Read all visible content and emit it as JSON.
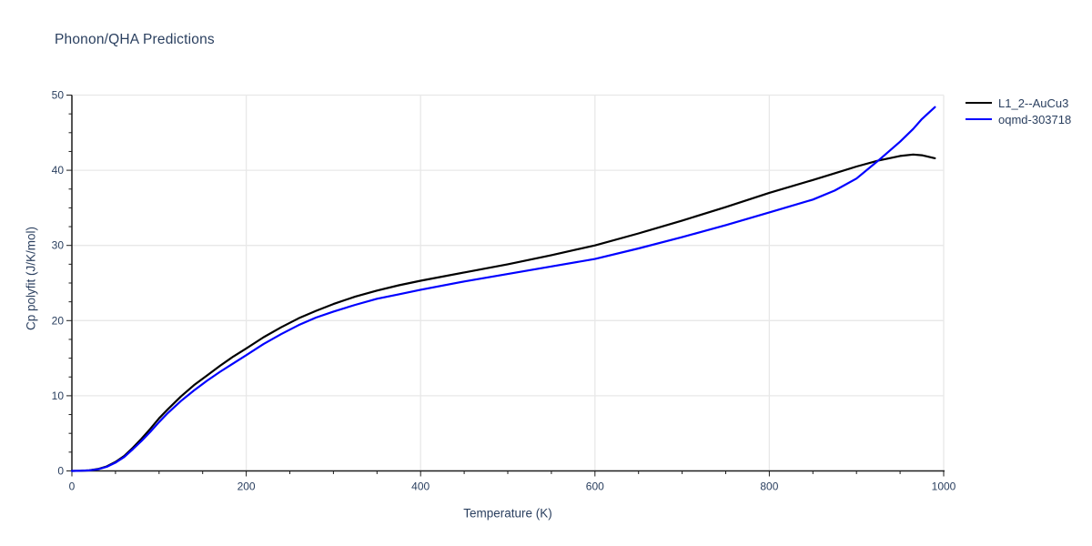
{
  "chart_data": {
    "type": "line",
    "title": "Phonon/QHA Predictions",
    "xlabel": "Temperature (K)",
    "ylabel": "Cp polyfit (J/K/mol)",
    "xlim": [
      0,
      1000
    ],
    "ylim": [
      0,
      50
    ],
    "x_ticks": [
      0,
      200,
      400,
      600,
      800,
      1000
    ],
    "y_ticks": [
      0,
      10,
      20,
      30,
      40,
      50
    ],
    "x_minor_step": 50,
    "y_minor_step": 2.5,
    "grid": true,
    "legend_position": "outside-top-right",
    "colors": {
      "text": "#2a3f5f",
      "grid": "#e8e8e8",
      "axis": "#1c1c1c",
      "background": "#ffffff"
    },
    "x": [
      0,
      10,
      20,
      30,
      40,
      50,
      60,
      70,
      80,
      90,
      100,
      110,
      125,
      140,
      155,
      170,
      185,
      200,
      220,
      240,
      260,
      280,
      300,
      325,
      350,
      375,
      400,
      450,
      500,
      550,
      600,
      650,
      700,
      750,
      800,
      850,
      875,
      900,
      925,
      950,
      965,
      975,
      990
    ],
    "series": [
      {
        "name": "L1_2--AuCu3",
        "color": "#000000",
        "values": [
          0,
          0.02,
          0.08,
          0.25,
          0.6,
          1.2,
          2.0,
          3.1,
          4.3,
          5.6,
          7.0,
          8.2,
          9.9,
          11.4,
          12.7,
          14.0,
          15.2,
          16.3,
          17.8,
          19.1,
          20.3,
          21.3,
          22.2,
          23.2,
          24.0,
          24.7,
          25.3,
          26.4,
          27.5,
          28.7,
          30.0,
          31.6,
          33.3,
          35.1,
          37.0,
          38.7,
          39.6,
          40.5,
          41.3,
          41.9,
          42.1,
          42.0,
          41.6
        ]
      },
      {
        "name": "oqmd-303718",
        "color": "#0000ff",
        "values": [
          0,
          0.02,
          0.07,
          0.22,
          0.55,
          1.1,
          1.85,
          2.9,
          4.0,
          5.2,
          6.5,
          7.7,
          9.3,
          10.7,
          12.0,
          13.2,
          14.3,
          15.4,
          16.9,
          18.2,
          19.4,
          20.4,
          21.2,
          22.1,
          22.9,
          23.5,
          24.1,
          25.2,
          26.2,
          27.2,
          28.2,
          29.6,
          31.1,
          32.7,
          34.4,
          36.1,
          37.3,
          38.9,
          41.3,
          43.8,
          45.5,
          46.8,
          48.4
        ]
      }
    ]
  }
}
